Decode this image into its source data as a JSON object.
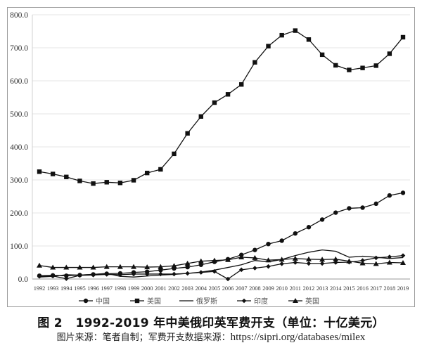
{
  "caption": {
    "figure_number": "图 2",
    "title": "1992-2019 年中美俄印英军费开支（单位：十亿美元）",
    "source_prefix": "图片来源：笔者自制；军费开支数据来源：",
    "source_url": "https://sipri.org/databases/milex"
  },
  "chart_data": {
    "type": "line",
    "title": "1992-2019 年中美俄印英军费开支（单位：十亿美元）",
    "xlabel": "",
    "ylabel": "",
    "ylim": [
      0,
      800
    ],
    "yticks": [
      "0.0",
      "100.0",
      "200.0",
      "300.0",
      "400.0",
      "500.0",
      "600.0",
      "700.0",
      "800.0"
    ],
    "grid": true,
    "legend_position": "bottom",
    "x": [
      "1992",
      "1993",
      "1994",
      "1995",
      "1996",
      "1997",
      "1998",
      "1999",
      "2000",
      "2001",
      "2002",
      "2003",
      "2004",
      "2005",
      "2006",
      "2007",
      "2008",
      "2009",
      "2010",
      "2011",
      "2012",
      "2013",
      "2014",
      "2015",
      "2016",
      "2017",
      "2018",
      "2019"
    ],
    "series": [
      {
        "name": "中国",
        "marker": "circle",
        "values": [
          10,
          11,
          10,
          12,
          14,
          16,
          17,
          20,
          22,
          27,
          32,
          36,
          43,
          52,
          60,
          73,
          88,
          106,
          116,
          138,
          157,
          180,
          201,
          214,
          216,
          228,
          253,
          261
        ]
      },
      {
        "name": "美国",
        "marker": "square",
        "values": [
          325,
          318,
          309,
          297,
          289,
          293,
          291,
          299,
          321,
          332,
          379,
          441,
          492,
          534,
          559,
          589,
          656,
          705,
          738,
          752,
          725,
          679,
          647,
          633,
          639,
          646,
          682,
          732
        ]
      },
      {
        "name": "俄罗斯",
        "marker": "none",
        "values": [
          6,
          8,
          13,
          12,
          14,
          17,
          8,
          6,
          9,
          12,
          14,
          17,
          21,
          27,
          35,
          43,
          56,
          52,
          59,
          71,
          81,
          88,
          84,
          66,
          69,
          66,
          62,
          65
        ]
      },
      {
        "name": "印度",
        "marker": "diamond",
        "values": [
          8,
          9,
          1,
          11,
          12,
          14,
          13,
          15,
          15,
          15,
          15,
          17,
          20,
          23,
          0,
          28,
          33,
          38,
          46,
          50,
          47,
          47,
          50,
          51,
          56,
          64,
          67,
          71
        ]
      },
      {
        "name": "英国",
        "marker": "triangle",
        "values": [
          41,
          35,
          35,
          35,
          35,
          37,
          37,
          37,
          36,
          37,
          40,
          47,
          54,
          56,
          58,
          66,
          64,
          57,
          59,
          62,
          60,
          59,
          60,
          54,
          48,
          46,
          50,
          49
        ]
      }
    ]
  }
}
